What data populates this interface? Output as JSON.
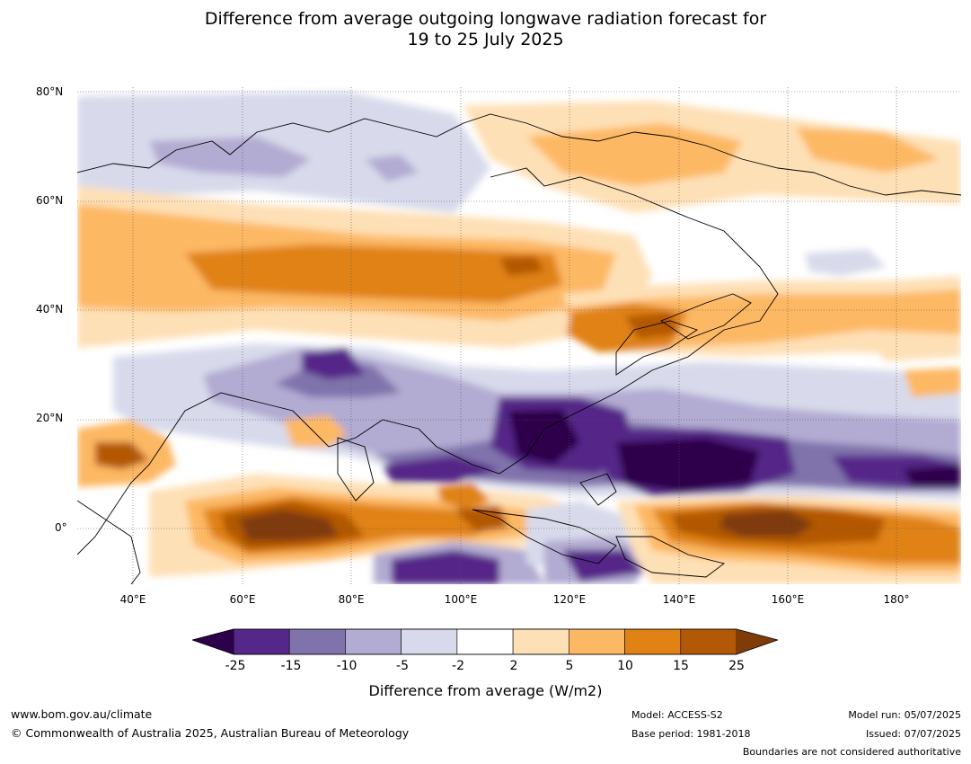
{
  "title_line1": "Difference from average outgoing longwave radiation forecast for",
  "title_line2": "19 to 25 July 2025",
  "lat_labels": [
    "80°N",
    "60°N",
    "40°N",
    "20°N",
    "0°"
  ],
  "lon_labels": [
    "40°E",
    "60°E",
    "80°E",
    "100°E",
    "120°E",
    "140°E",
    "160°E",
    "180°"
  ],
  "colorbar": {
    "ticks": [
      "-25",
      "-15",
      "-10",
      "-5",
      "-2",
      "2",
      "5",
      "10",
      "15",
      "25"
    ],
    "colors": [
      "#2d004b",
      "#542788",
      "#8073ac",
      "#b2abd2",
      "#d8daeb",
      "#ffffff",
      "#fee0b6",
      "#fdb863",
      "#e08214",
      "#b35806",
      "#7f3b08"
    ],
    "label": "Difference from average (W/m2)"
  },
  "footer": {
    "website": "www.bom.gov.au/climate",
    "copyright": "© Commonwealth of Australia 2025, Australian Bureau of Meteorology",
    "model": "Model: ACCESS-S2",
    "base_period": "Base period: 1981-2018",
    "model_run": "Model run: 05/07/2025",
    "issued": "Issued: 07/07/2025",
    "disclaimer": "Boundaries are not considered authoritative"
  }
}
